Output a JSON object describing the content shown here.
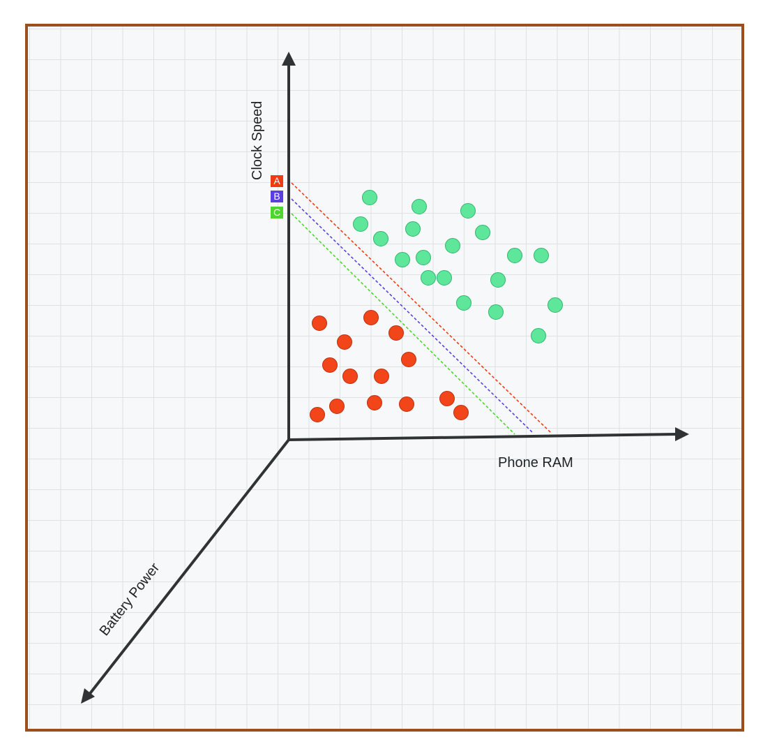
{
  "colors": {
    "frame_border": "#9c4f1e",
    "background": "#f6f8f9",
    "grid": "#dde2e6",
    "axis": "#2f3335",
    "class_green": "#5ee79a",
    "class_green_stroke": "#33b46f",
    "class_red": "#f2451a",
    "class_red_stroke": "#b9300f"
  },
  "axes": {
    "x_label": "Phone RAM",
    "y_label": "Clock Speed",
    "z_label": "Battery Power"
  },
  "boundaries": [
    {
      "tag": "A",
      "color": "#ef3b14"
    },
    {
      "tag": "B",
      "color": "#5b3ee0"
    },
    {
      "tag": "C",
      "color": "#4cd62b"
    }
  ],
  "green_points": [
    [
      530,
      283
    ],
    [
      601,
      296
    ],
    [
      671,
      302
    ],
    [
      517,
      321
    ],
    [
      592,
      328
    ],
    [
      692,
      333
    ],
    [
      546,
      342
    ],
    [
      649,
      352
    ],
    [
      577,
      372
    ],
    [
      607,
      369
    ],
    [
      738,
      366
    ],
    [
      776,
      366
    ],
    [
      614,
      398
    ],
    [
      637,
      398
    ],
    [
      714,
      401
    ],
    [
      665,
      434
    ],
    [
      711,
      447
    ],
    [
      796,
      437
    ],
    [
      772,
      481
    ]
  ],
  "red_points": [
    [
      458,
      463
    ],
    [
      532,
      455
    ],
    [
      568,
      477
    ],
    [
      494,
      490
    ],
    [
      586,
      515
    ],
    [
      473,
      523
    ],
    [
      502,
      539
    ],
    [
      547,
      539
    ],
    [
      455,
      594
    ],
    [
      483,
      582
    ],
    [
      537,
      577
    ],
    [
      583,
      579
    ],
    [
      641,
      571
    ],
    [
      661,
      591
    ]
  ]
}
